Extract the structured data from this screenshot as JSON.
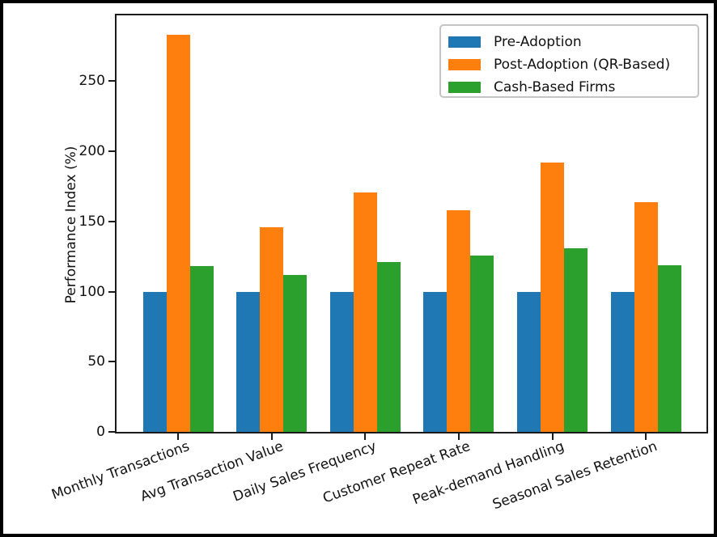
{
  "figure": {
    "background": "#ffffff",
    "frame_color": "#000000",
    "axes_color": "#1a1a1a",
    "legend_border_color": "#c4c4c4"
  },
  "chart_data": {
    "type": "bar",
    "title": "",
    "xlabel": "",
    "ylabel": "Performance Index (%)",
    "categories": [
      "Monthly Transactions",
      "Avg Transaction Value",
      "Daily Sales Frequency",
      "Customer Repeat Rate",
      "Peak-demand Handling",
      "Seasonal Sales Retention"
    ],
    "series": [
      {
        "name": "Pre-Adoption",
        "color": "#1f77b4",
        "values": [
          100,
          100,
          100,
          100,
          100,
          100
        ]
      },
      {
        "name": "Post-Adoption (QR-Based)",
        "color": "#ff7f0e",
        "values": [
          283,
          146,
          171,
          158,
          192,
          164
        ]
      },
      {
        "name": "Cash-Based Firms",
        "color": "#2ca02c",
        "values": [
          118,
          112,
          121,
          126,
          131,
          119
        ]
      }
    ],
    "yticks": [
      0,
      50,
      100,
      150,
      200,
      250
    ],
    "ylim": [
      0,
      297
    ],
    "grid": false,
    "legend_position": "upper right",
    "x_tick_label_rotation_deg": 20
  }
}
